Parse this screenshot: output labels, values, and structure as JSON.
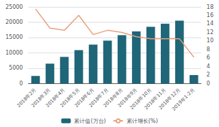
{
  "chart_data": {
    "type": "bar",
    "categories": [
      "2018年2月",
      "2018年3月",
      "2018年4月",
      "2018年5月",
      "2018年6月",
      "2018年7月",
      "2018年8月",
      "2018年9月",
      "2018年10月",
      "2018年11月",
      "2018年12月",
      "2019年1-2月"
    ],
    "series": [
      {
        "name": "累计值(万台)",
        "type": "bar",
        "color": "#1f6678",
        "values": [
          2500,
          6500,
          8700,
          10900,
          12700,
          14000,
          15800,
          17000,
          18500,
          19500,
          20500,
          2788.5
        ]
      },
      {
        "name": "累计增长(%)",
        "type": "line",
        "axis": "y2",
        "color": "#e8a07a",
        "values": [
          17.5,
          13.0,
          12.5,
          16.0,
          11.5,
          12.5,
          12.0,
          11.0,
          10.5,
          10.5,
          10.5,
          6.2
        ]
      }
    ],
    "ylim": [
      0,
      25000
    ],
    "yticks": [
      0,
      5000,
      10000,
      15000,
      20000,
      25000
    ],
    "y2lim": [
      0,
      18
    ],
    "y2ticks": [
      0,
      2,
      4,
      6,
      8,
      10,
      12,
      14,
      16,
      18
    ],
    "grid": true,
    "legend": "bottom"
  }
}
